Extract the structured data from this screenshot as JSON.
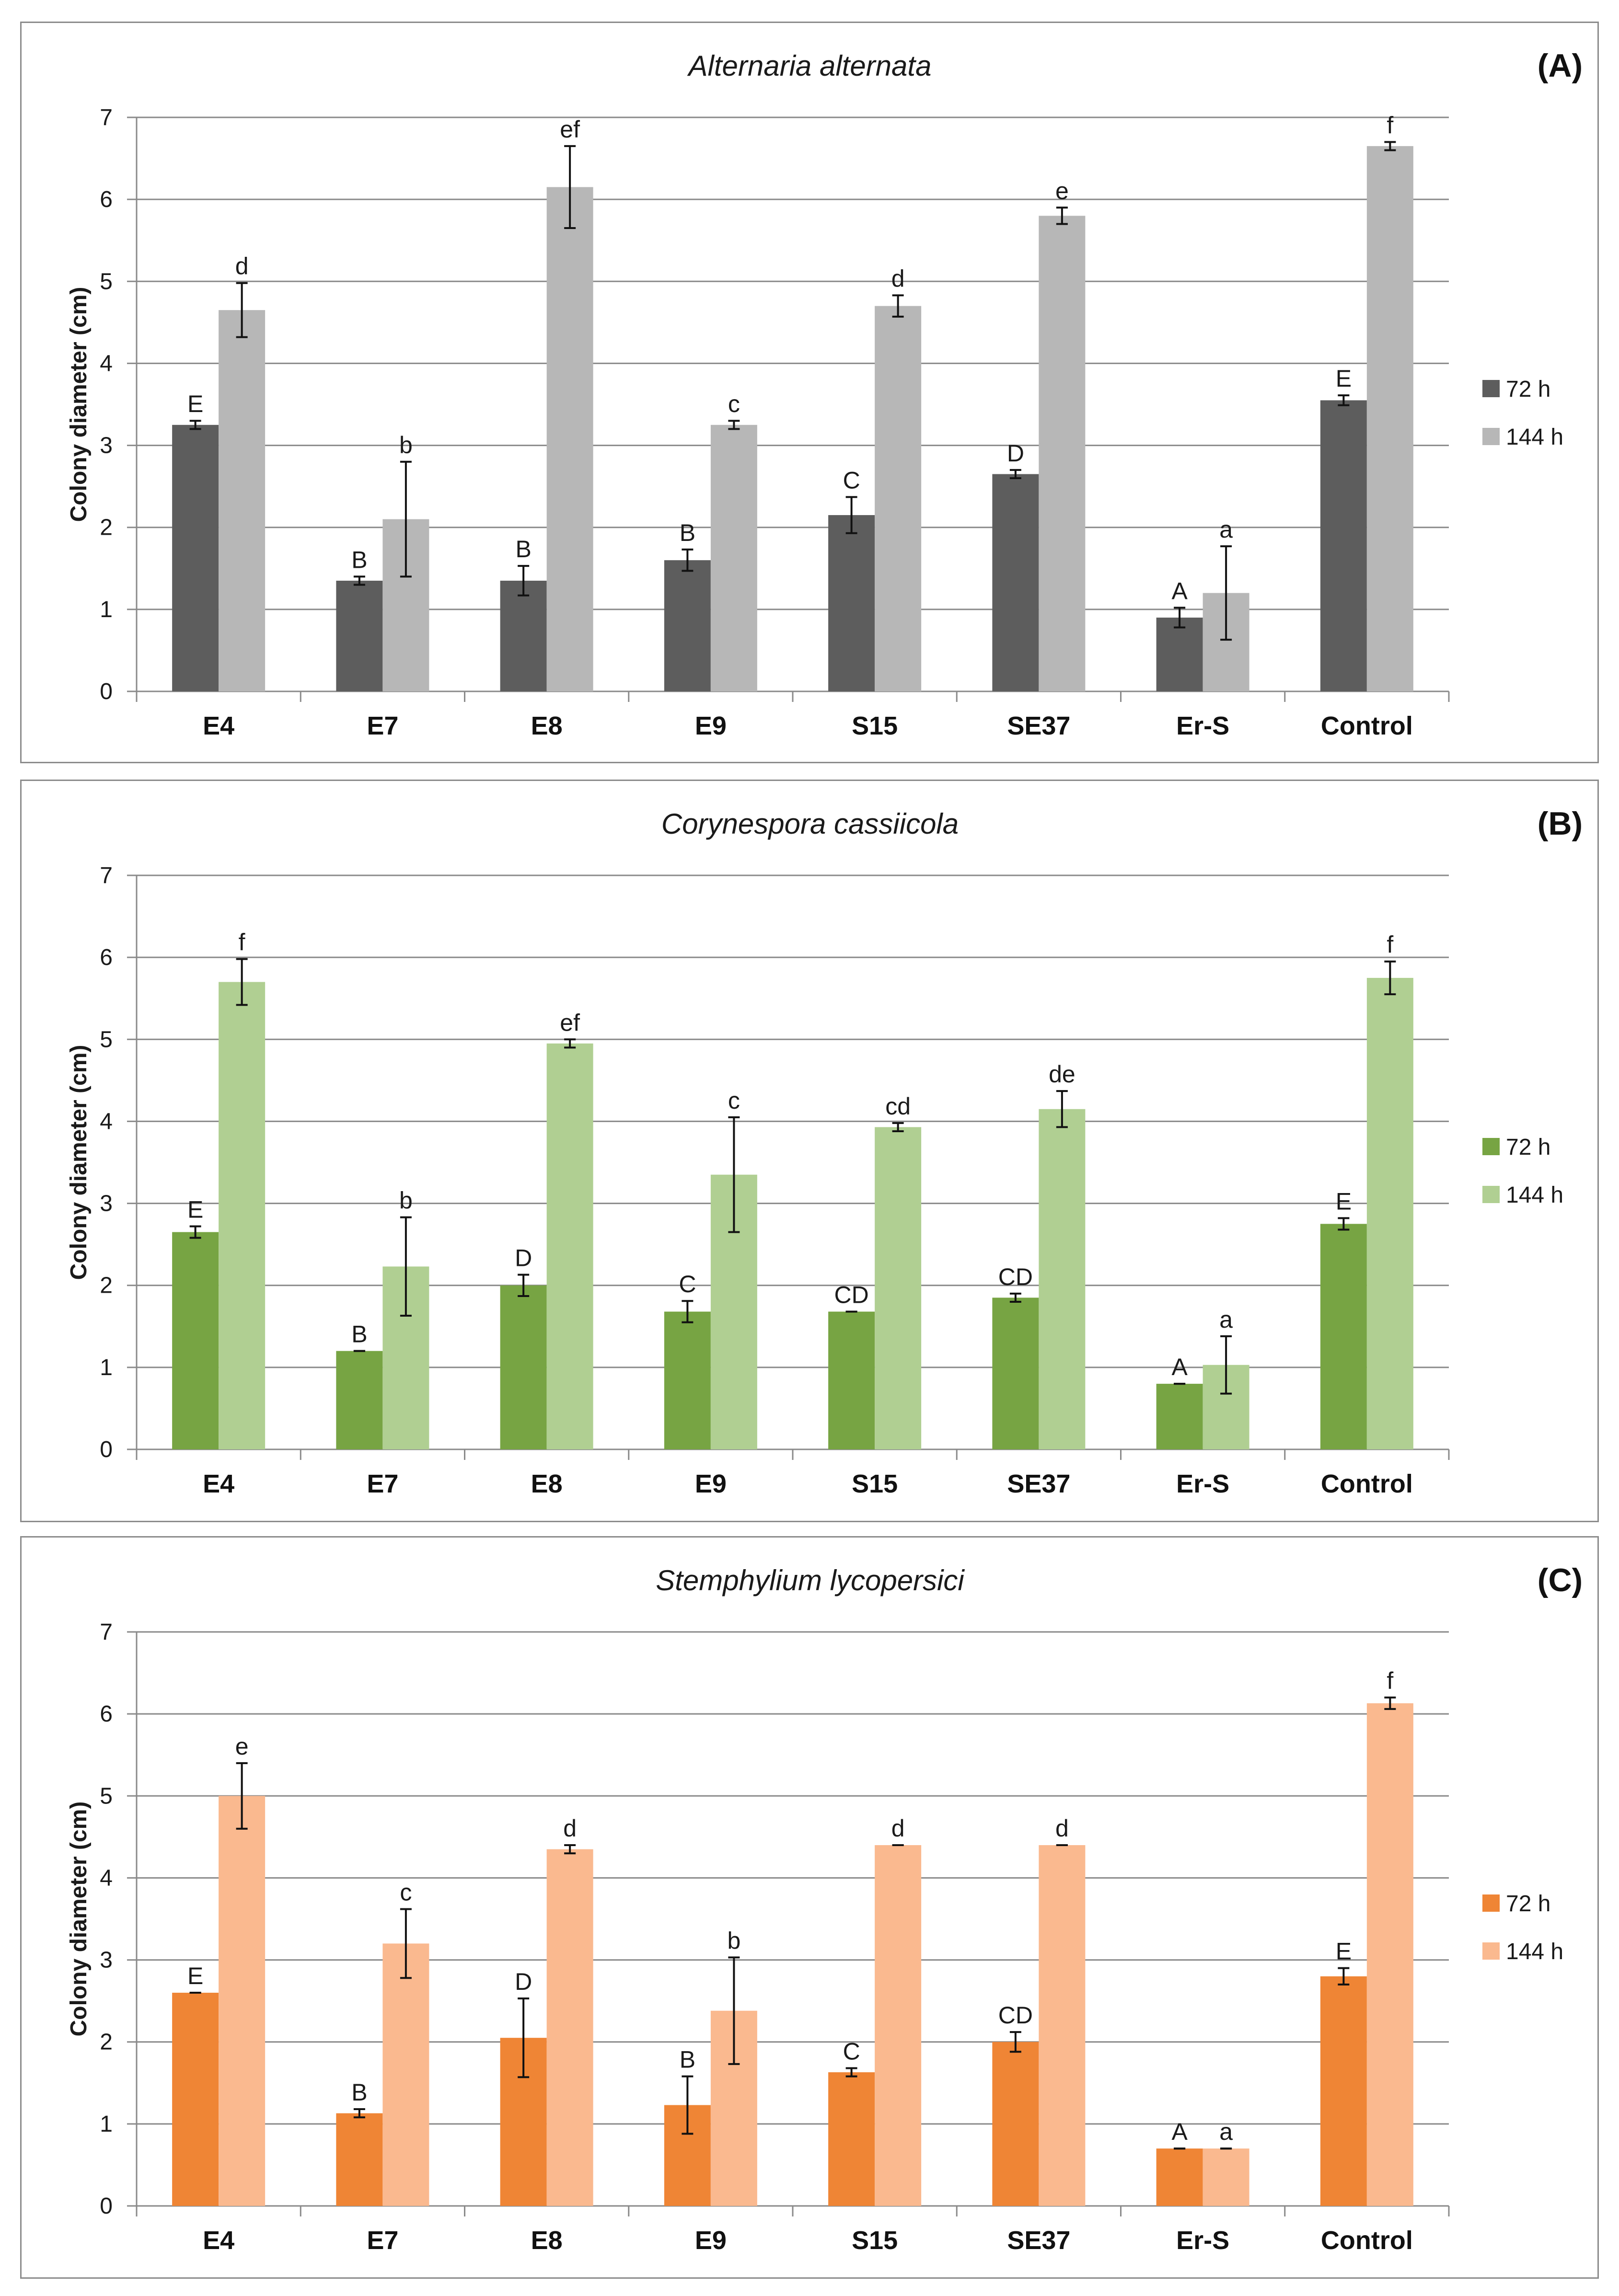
{
  "chart_data": [
    {
      "type": "bar",
      "panel_label": "(A)",
      "title": "Alternaria alternata",
      "ylabel": "Colony diameter (cm)",
      "xlabel": "",
      "ylim": [
        0,
        7
      ],
      "yticks": [
        "0",
        "1",
        "2",
        "3",
        "4",
        "5",
        "6",
        "7"
      ],
      "grid": true,
      "legend_position": "right",
      "categories": [
        "E4",
        "E7",
        "E8",
        "E9",
        "S15",
        "SE37",
        "Er-S",
        "Control"
      ],
      "colors": [
        "#5d5d5d",
        "#b7b7b7"
      ],
      "series": [
        {
          "name": "72 h",
          "values": [
            3.25,
            1.35,
            1.35,
            1.6,
            2.15,
            2.65,
            0.9,
            3.55
          ],
          "errors": [
            0.05,
            0.05,
            0.18,
            0.13,
            0.22,
            0.05,
            0.12,
            0.06
          ],
          "letters": [
            "E",
            "B",
            "B",
            "B",
            "C",
            "D",
            "A",
            "E"
          ]
        },
        {
          "name": "144 h",
          "values": [
            4.65,
            2.1,
            6.15,
            3.25,
            4.7,
            5.8,
            1.2,
            6.65
          ],
          "errors": [
            0.33,
            0.7,
            0.5,
            0.05,
            0.13,
            0.1,
            0.57,
            0.05
          ],
          "letters": [
            "d",
            "b",
            "ef",
            "c",
            "d",
            "e",
            "a",
            "f"
          ]
        }
      ]
    },
    {
      "type": "bar",
      "panel_label": "(B)",
      "title": "Corynespora cassiicola",
      "ylabel": "Colony diameter (cm)",
      "xlabel": "",
      "ylim": [
        0,
        7
      ],
      "yticks": [
        "0",
        "1",
        "2",
        "3",
        "4",
        "5",
        "6",
        "7"
      ],
      "grid": true,
      "legend_position": "right",
      "categories": [
        "E4",
        "E7",
        "E8",
        "E9",
        "S15",
        "SE37",
        "Er-S",
        "Control"
      ],
      "colors": [
        "#77a443",
        "#b0cf92"
      ],
      "series": [
        {
          "name": "72 h",
          "values": [
            2.65,
            1.2,
            2.0,
            1.68,
            1.68,
            1.85,
            0.8,
            2.75
          ],
          "errors": [
            0.07,
            0.0,
            0.13,
            0.13,
            0.0,
            0.05,
            0.0,
            0.07
          ],
          "letters": [
            "E",
            "B",
            "D",
            "C",
            "CD",
            "CD",
            "A",
            "E"
          ]
        },
        {
          "name": "144 h",
          "values": [
            5.7,
            2.23,
            4.95,
            3.35,
            3.93,
            4.15,
            1.03,
            5.75
          ],
          "errors": [
            0.28,
            0.6,
            0.05,
            0.7,
            0.05,
            0.22,
            0.35,
            0.2
          ],
          "letters": [
            "f",
            "b",
            "ef",
            "c",
            "cd",
            "de",
            "a",
            "f"
          ]
        }
      ]
    },
    {
      "type": "bar",
      "panel_label": "(C)",
      "title": "Stemphylium lycopersici",
      "ylabel": "Colony diameter (cm)",
      "xlabel": "",
      "ylim": [
        0,
        7
      ],
      "yticks": [
        "0",
        "1",
        "2",
        "3",
        "4",
        "5",
        "6",
        "7"
      ],
      "grid": true,
      "legend_position": "right",
      "categories": [
        "E4",
        "E7",
        "E8",
        "E9",
        "S15",
        "SE37",
        "Er-S",
        "Control"
      ],
      "colors": [
        "#ef8535",
        "#fab98f"
      ],
      "series": [
        {
          "name": "72 h",
          "values": [
            2.6,
            1.13,
            2.05,
            1.23,
            1.63,
            2.0,
            0.7,
            2.8
          ],
          "errors": [
            0.0,
            0.05,
            0.48,
            0.35,
            0.05,
            0.12,
            0.0,
            0.1
          ],
          "letters": [
            "E",
            "B",
            "D",
            "B",
            "C",
            "CD",
            "A",
            "E"
          ]
        },
        {
          "name": "144 h",
          "values": [
            5.0,
            3.2,
            4.35,
            2.38,
            4.4,
            4.4,
            0.7,
            6.13
          ],
          "errors": [
            0.4,
            0.42,
            0.05,
            0.65,
            0.0,
            0.0,
            0.0,
            0.07
          ],
          "letters": [
            "e",
            "c",
            "d",
            "b",
            "d",
            "d",
            "a",
            "f"
          ]
        }
      ]
    }
  ]
}
